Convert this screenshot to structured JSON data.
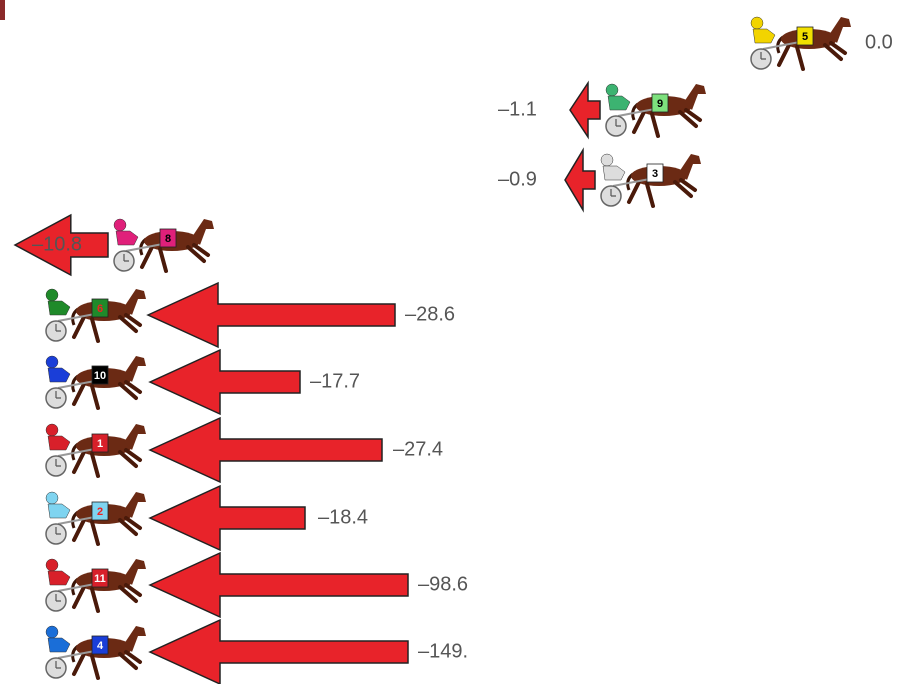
{
  "rows": [
    {
      "number": "5",
      "value": "0.0"
    },
    {
      "number": "9",
      "value": "–1.1"
    },
    {
      "number": "3",
      "value": "–0.9"
    },
    {
      "number": "8",
      "value": "–10.8"
    },
    {
      "number": "6",
      "value": "–28.6"
    },
    {
      "number": "10",
      "value": "–17.7"
    },
    {
      "number": "1",
      "value": "–27.4"
    },
    {
      "number": "2",
      "value": "–18.4"
    },
    {
      "number": "11",
      "value": "–98.6"
    },
    {
      "number": "4",
      "value": "–149."
    }
  ]
}
